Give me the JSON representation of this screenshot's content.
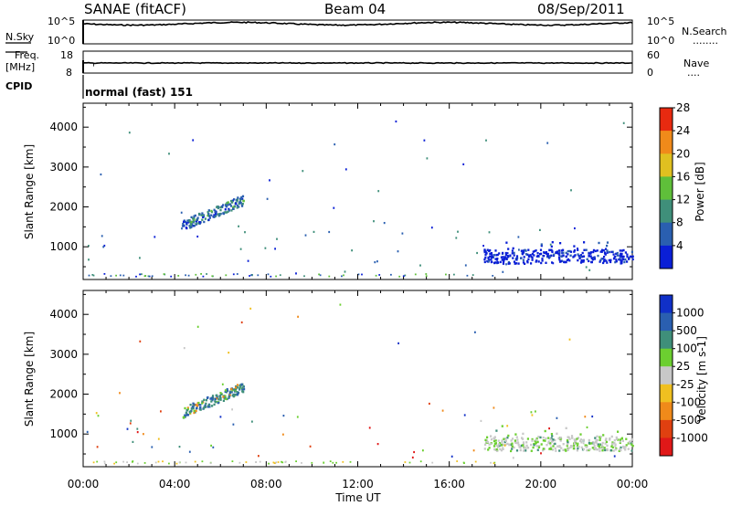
{
  "header": {
    "station": "SANAE (fitACF)",
    "beam": "Beam 04",
    "date": "08/Sep/2011"
  },
  "strips": {
    "nsky_label": "N.Sky",
    "nsearch_label": "N.Search",
    "nsearch_dots": "........",
    "noise_ticks_left": [
      "10^5",
      "10^0"
    ],
    "noise_ticks_right": [
      "10^5",
      "10^0"
    ],
    "freq_label": "Freq.",
    "freq_unit": "[MHz]",
    "freq_ticks": [
      "18",
      "8"
    ],
    "nave_label": "Nave",
    "nave_dots": "....",
    "nave_ticks": [
      "60",
      "0"
    ],
    "cpid_label": "CPID",
    "cpid_text": "normal (fast) 151"
  },
  "chart_data": [
    {
      "type": "heatmap",
      "name": "power",
      "ylabel": "Slant Range [km]",
      "xlabel": "Time UT",
      "x_tick_labels": [
        "00:00",
        "04:00",
        "08:00",
        "12:00",
        "16:00",
        "20:00",
        "00:00"
      ],
      "x_range_hours": [
        0,
        24
      ],
      "y_range_km": [
        180,
        4600
      ],
      "y_ticks": [
        1000,
        2000,
        3000,
        4000
      ],
      "colorbar": {
        "label": "Power [dB]",
        "ticks": [
          "4",
          "8",
          "12",
          "16",
          "20",
          "24",
          "28"
        ],
        "colors": [
          "#0a1fd6",
          "#2a5fb0",
          "#3f8f7a",
          "#5fbf3a",
          "#e0c020",
          "#f08a1a",
          "#e82a10"
        ]
      },
      "scatter_regions": [
        {
          "t_start": 4.3,
          "t_end": 7.0,
          "r_start": 1550,
          "r_end": 2200,
          "level": 1
        },
        {
          "t_start": 17.5,
          "t_end": 24.0,
          "r_start": 600,
          "r_end": 950,
          "level": 0
        }
      ]
    },
    {
      "type": "heatmap",
      "name": "velocity",
      "ylabel": "Slant Range [km]",
      "xlabel": "Time UT",
      "x_tick_labels": [
        "00:00",
        "04:00",
        "08:00",
        "12:00",
        "16:00",
        "20:00",
        "00:00"
      ],
      "x_range_hours": [
        0,
        24
      ],
      "y_range_km": [
        180,
        4600
      ],
      "y_ticks": [
        1000,
        2000,
        3000,
        4000
      ],
      "colorbar": {
        "label": "Velocity [m s-1]",
        "ticks": [
          "1000",
          "500",
          "100",
          "25",
          "-25",
          "-100",
          "-500",
          "-1000"
        ],
        "colors": [
          "#1030c8",
          "#2a5fb0",
          "#3f8f7a",
          "#6ccf30",
          "#c8c8c8",
          "#f0c020",
          "#f08a1a",
          "#e04010",
          "#e01818"
        ]
      },
      "scatter_regions": [
        {
          "t_start": 4.3,
          "t_end": 7.0,
          "r_start": 1550,
          "r_end": 2200,
          "level": "mixed-blue-green"
        },
        {
          "t_start": 17.5,
          "t_end": 24.0,
          "r_start": 600,
          "r_end": 950,
          "level": "grey-green"
        }
      ]
    }
  ]
}
